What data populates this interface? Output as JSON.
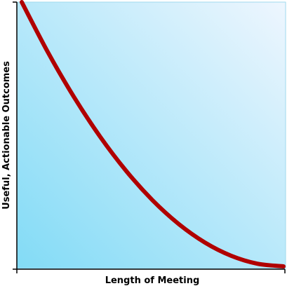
{
  "chart_data": {
    "type": "line",
    "xlabel": "Length of Meeting",
    "ylabel": "Useful, Actionable Outcomes",
    "grid": false,
    "legend": "none",
    "xlim": [
      0,
      1
    ],
    "ylim": [
      0,
      1
    ],
    "series": [
      {
        "x": [
          0,
          0.1,
          0.2,
          0.3,
          0.4,
          0.5,
          0.6,
          0.7,
          0.8,
          0.9,
          1
        ],
        "values": [
          1.0,
          0.81,
          0.64,
          0.49,
          0.36,
          0.25,
          0.16,
          0.09,
          0.04,
          0.01,
          0.0
        ],
        "color": "#b00000"
      }
    ],
    "colors": {
      "background_light": "#eef6fe",
      "background_dark": "#82dbf6",
      "curve": "#b00000",
      "axis": "#000000"
    }
  }
}
